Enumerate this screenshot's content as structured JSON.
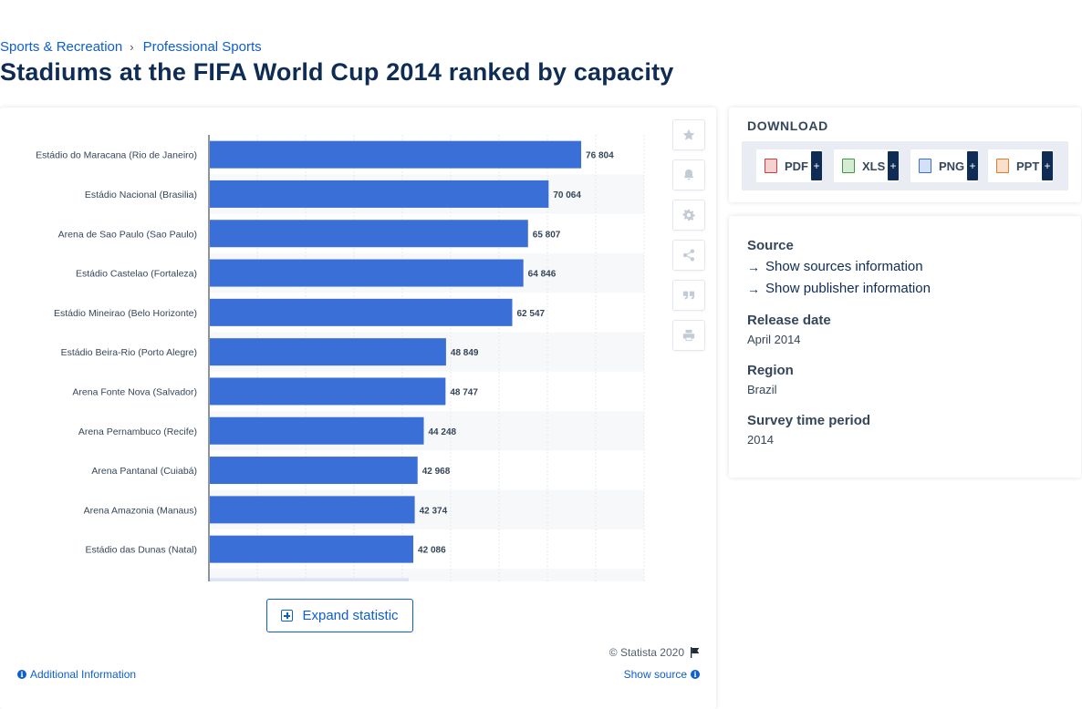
{
  "breadcrumb": {
    "category": "Sports & Recreation",
    "sub": "Professional Sports",
    "separator": "›"
  },
  "title": "Stadiums at the FIFA World Cup 2014 ranked by capacity",
  "chart_data": {
    "type": "bar",
    "orientation": "horizontal",
    "title": "Stadiums at the FIFA World Cup 2014 ranked by capacity",
    "xlabel": "",
    "ylabel": "",
    "xlim": [
      0,
      90000
    ],
    "grid": true,
    "categories": [
      "Estádio do Maracana (Rio de Janeiro)",
      "Estádio Nacional (Brasilia)",
      "Arena de Sao Paulo (Sao Paulo)",
      "Estádio Castelao (Fortaleza)",
      "Estádio Mineirao (Belo Horizonte)",
      "Estádio Beira-Rio (Porto Alegre)",
      "Arena Fonte Nova (Salvador)",
      "Arena Pernambuco (Recife)",
      "Arena Pantanal (Cuiabá)",
      "Arena Amazonia (Manaus)",
      "Estádio das Dunas (Natal)"
    ],
    "values": [
      76804,
      70064,
      65807,
      64846,
      62547,
      48849,
      48747,
      44248,
      42968,
      42374,
      42086
    ],
    "value_labels": [
      "76 804",
      "70 064",
      "65 807",
      "64 846",
      "62 547",
      "48 849",
      "48 747",
      "44 248",
      "42 968",
      "42 374",
      "42 086"
    ],
    "bar_color": "#3a6fd8"
  },
  "toolbar": [
    "star-icon",
    "bell-icon",
    "gear-icon",
    "share-icon",
    "quote-icon",
    "print-icon"
  ],
  "expand_label": "Expand statistic",
  "copyright": "© Statista 2020",
  "additional_info": "Additional Information",
  "show_source": "Show source",
  "download": {
    "title": "DOWNLOAD",
    "formats": [
      {
        "label": "PDF",
        "color": "#d63a3a"
      },
      {
        "label": "XLS",
        "color": "#3f9b3f"
      },
      {
        "label": "PNG",
        "color": "#3a6fd8"
      },
      {
        "label": "PPT",
        "color": "#e47b2b"
      }
    ],
    "plus": "+"
  },
  "meta": {
    "source_heading": "Source",
    "show_sources": "Show sources information",
    "show_publisher": "Show publisher information",
    "release_heading": "Release date",
    "release_value": "April 2014",
    "region_heading": "Region",
    "region_value": "Brazil",
    "period_heading": "Survey time period",
    "period_value": "2014"
  }
}
